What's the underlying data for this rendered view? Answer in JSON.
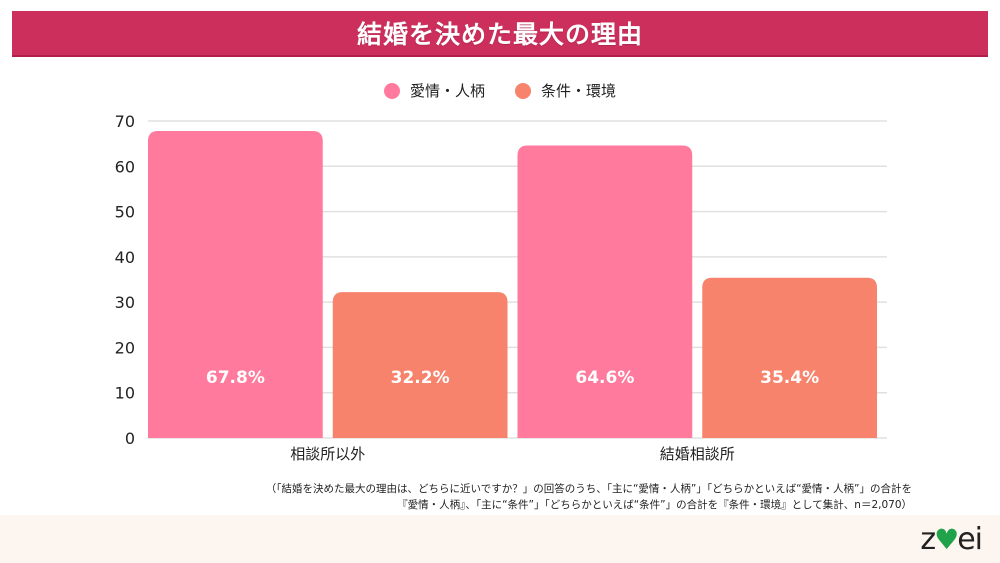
{
  "header": {
    "title": "結婚を決めた最大の理由"
  },
  "colors": {
    "title_bg": "#cd2f5c",
    "series1": "#ff7a9c",
    "series2": "#f7836d",
    "grid": "#e0e0e0",
    "footer_bg": "#fdf5ef",
    "logo_accent": "#1fa24a"
  },
  "chart_data": {
    "type": "bar",
    "title": "結婚を決めた最大の理由",
    "categories": [
      "相談所以外",
      "結婚相談所"
    ],
    "series": [
      {
        "name": "愛情・人柄",
        "values": [
          67.8,
          64.6
        ],
        "labels": [
          "67.8%",
          "64.6%"
        ]
      },
      {
        "name": "条件・環境",
        "values": [
          32.2,
          35.4
        ],
        "labels": [
          "32.2%",
          "35.4%"
        ]
      }
    ],
    "xlabel": "",
    "ylabel": "",
    "ylim": [
      0,
      70
    ],
    "yticks": [
      0,
      10,
      20,
      30,
      40,
      50,
      60,
      70
    ],
    "grid": true,
    "legend_position": "top-center"
  },
  "note": {
    "line1": "（「結婚を決めた最大の理由は、どちらに近いですか？」の回答のうち、「主に“愛情・人柄”」「どちらかといえば“愛情・人柄”」の合計を",
    "line2": "『愛情・人柄』、「主に“条件”」「どちらかといえば“条件”」の合計を『条件・環境』として集計、n＝2,070）"
  },
  "logo": {
    "text_left": "z",
    "heart": "♥",
    "text_right": "ei"
  }
}
